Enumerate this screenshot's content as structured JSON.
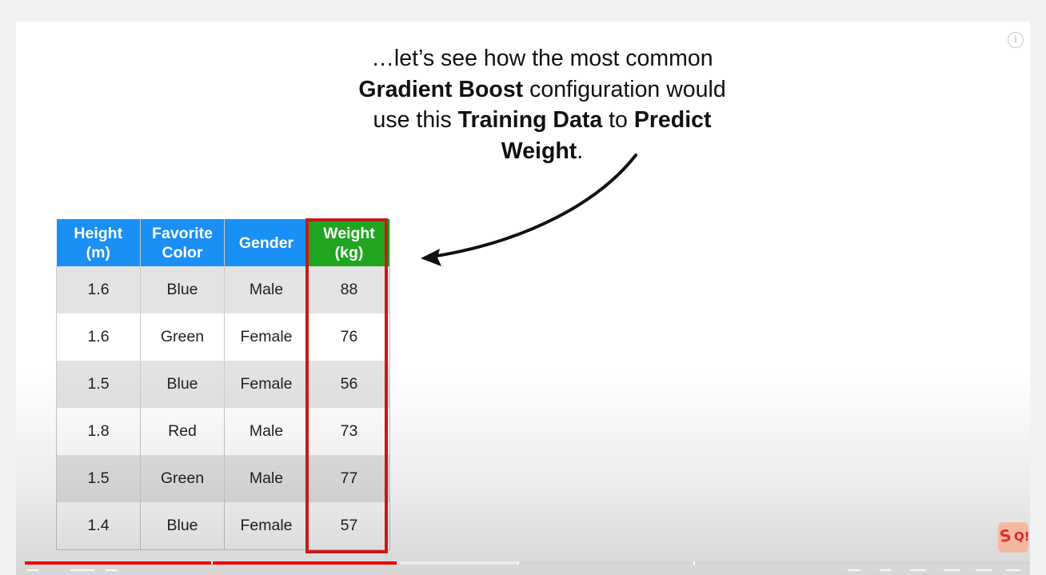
{
  "player": {
    "info_icon": "info-icon",
    "progress_played": 0.37,
    "progress_buffered": 0.49,
    "chapter_markers": [
      0.185,
      0.49,
      0.665
    ]
  },
  "slide": {
    "caption_lines": [
      [
        {
          "text": "…let’s see how the most common",
          "bold": false
        }
      ],
      [
        {
          "text": "Gradient Boost",
          "bold": true
        },
        {
          "text": " configuration would",
          "bold": false
        }
      ],
      [
        {
          "text": "use this ",
          "bold": false
        },
        {
          "text": "Training Data",
          "bold": true
        },
        {
          "text": " to ",
          "bold": false
        },
        {
          "text": "Predict",
          "bold": true
        }
      ],
      [
        {
          "text": "Weight",
          "bold": true
        },
        {
          "text": ".",
          "bold": false
        }
      ]
    ],
    "table": {
      "headers": [
        {
          "line1": "Height",
          "line2": "(m)"
        },
        {
          "line1": "Favorite",
          "line2": "Color"
        },
        {
          "line1": "Gender",
          "line2": ""
        },
        {
          "line1": "Weight",
          "line2": "(kg)"
        }
      ],
      "rows": [
        [
          "1.6",
          "Blue",
          "Male",
          "88"
        ],
        [
          "1.6",
          "Green",
          "Female",
          "76"
        ],
        [
          "1.5",
          "Blue",
          "Female",
          "56"
        ],
        [
          "1.8",
          "Red",
          "Male",
          "73"
        ],
        [
          "1.5",
          "Green",
          "Male",
          "77"
        ],
        [
          "1.4",
          "Blue",
          "Female",
          "57"
        ]
      ]
    },
    "colors": {
      "header_blue": "#1a8ff5",
      "header_green": "#1fa51f",
      "highlight_red": "#c61a1a",
      "progress_red": "#f00000"
    },
    "logo_icon": "statquest-logo-icon"
  }
}
